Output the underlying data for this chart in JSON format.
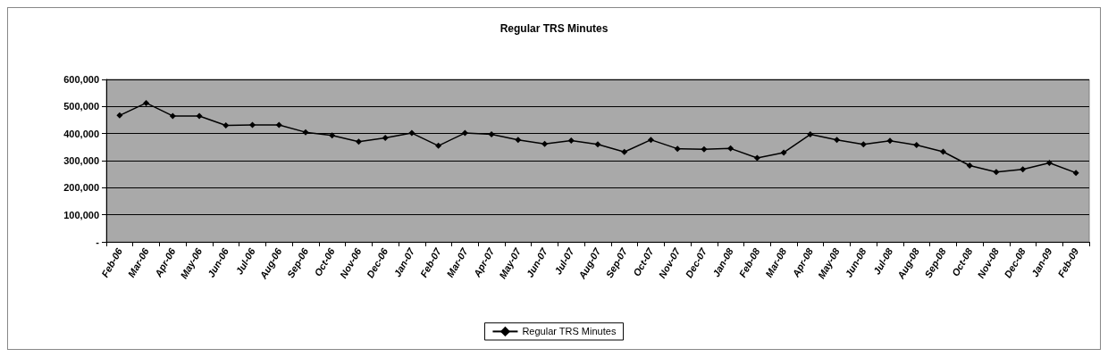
{
  "chart_data": {
    "type": "line",
    "title": "Regular TRS Minutes",
    "categories": [
      "Feb-06",
      "Mar-06",
      "Apr-06",
      "May-06",
      "Jun-06",
      "Jul-06",
      "Aug-06",
      "Sep-06",
      "Oct-06",
      "Nov-06",
      "Dec-06",
      "Jan-07",
      "Feb-07",
      "Mar-07",
      "Apr-07",
      "May-07",
      "Jun-07",
      "Jul-07",
      "Aug-07",
      "Sep-07",
      "Oct-07",
      "Nov-07",
      "Dec-07",
      "Jan-08",
      "Feb-08",
      "Mar-08",
      "Apr-08",
      "May-08",
      "Jun-08",
      "Jul-08",
      "Aug-08",
      "Sep-08",
      "Oct-08",
      "Nov-08",
      "Dec-08",
      "Jan-09",
      "Feb-09"
    ],
    "series": [
      {
        "name": "Regular TRS Minutes",
        "color": "#000000",
        "values": [
          467000,
          513000,
          465000,
          465000,
          430000,
          432000,
          432000,
          405000,
          393000,
          370000,
          384000,
          402000,
          355000,
          402000,
          397000,
          377000,
          362000,
          374000,
          360000,
          332000,
          377000,
          344000,
          342000,
          345000,
          310000,
          330000,
          397000,
          377000,
          360000,
          373000,
          358000,
          333000,
          282000,
          258000,
          268000,
          292000,
          255000
        ]
      }
    ],
    "ylim": [
      0,
      600000
    ],
    "yticks": [
      {
        "value": 0,
        "label": "-"
      },
      {
        "value": 100000,
        "label": "100,000"
      },
      {
        "value": 200000,
        "label": "200,000"
      },
      {
        "value": 300000,
        "label": "300,000"
      },
      {
        "value": 400000,
        "label": "400,000"
      },
      {
        "value": 500000,
        "label": "500,000"
      },
      {
        "value": 600000,
        "label": "600,000"
      }
    ],
    "grid": "y",
    "legend": "bottom",
    "marker": "diamond",
    "line_style": "solid"
  }
}
